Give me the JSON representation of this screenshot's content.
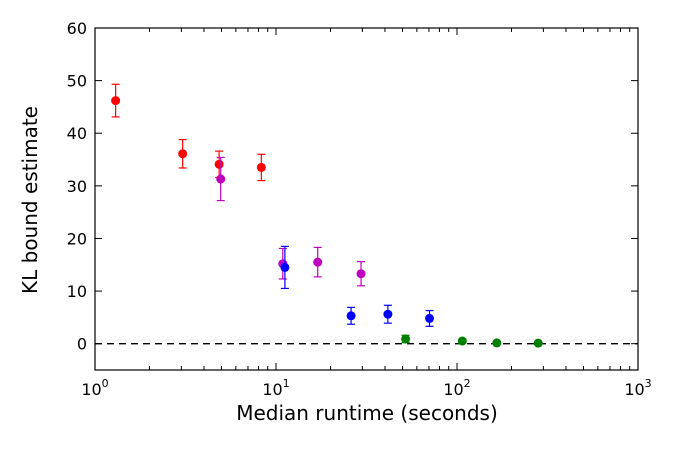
{
  "chart_data": {
    "type": "scatter",
    "title": "",
    "xlabel": "Median runtime (seconds)",
    "ylabel": "KL bound estimate",
    "xscale": "log",
    "xlim": [
      1,
      1000
    ],
    "ylim": [
      -5,
      60
    ],
    "x_ticks": [
      1,
      10,
      100,
      1000
    ],
    "x_tick_labels": [
      {
        "base": "10",
        "exp": "0"
      },
      {
        "base": "10",
        "exp": "1"
      },
      {
        "base": "10",
        "exp": "2"
      },
      {
        "base": "10",
        "exp": "3"
      }
    ],
    "y_ticks": [
      0,
      10,
      20,
      30,
      40,
      50,
      60
    ],
    "y_tick_labels": [
      "0",
      "10",
      "20",
      "30",
      "40",
      "50",
      "60"
    ],
    "grid": false,
    "reference_line": {
      "y": 0,
      "style": "dashed",
      "color": "#000000"
    },
    "series": [
      {
        "color": "#ff0000",
        "points": [
          {
            "x": 1.3,
            "y": 46.2,
            "err": 3.1
          },
          {
            "x": 3.05,
            "y": 36.1,
            "err": 2.7
          },
          {
            "x": 4.85,
            "y": 34.1,
            "err": 2.5
          },
          {
            "x": 8.3,
            "y": 33.5,
            "err": 2.5
          }
        ]
      },
      {
        "color": "#bf00bf",
        "points": [
          {
            "x": 4.95,
            "y": 31.3,
            "err": 4.1
          },
          {
            "x": 10.9,
            "y": 15.2,
            "err": 2.9
          },
          {
            "x": 17.0,
            "y": 15.5,
            "err": 2.8
          },
          {
            "x": 29.5,
            "y": 13.3,
            "err": 2.3
          }
        ]
      },
      {
        "color": "#0000ff",
        "points": [
          {
            "x": 11.2,
            "y": 14.5,
            "err": 4.0
          },
          {
            "x": 26.0,
            "y": 5.3,
            "err": 1.6
          },
          {
            "x": 41.5,
            "y": 5.6,
            "err": 1.7
          },
          {
            "x": 70.5,
            "y": 4.8,
            "err": 1.5
          }
        ]
      },
      {
        "color": "#008000",
        "points": [
          {
            "x": 52.0,
            "y": 0.9,
            "err": 0.7
          },
          {
            "x": 107.0,
            "y": 0.5,
            "err": 0.4
          },
          {
            "x": 166.0,
            "y": 0.15,
            "err": 0.15
          },
          {
            "x": 281.0,
            "y": 0.1,
            "err": 0.1
          }
        ]
      }
    ]
  }
}
